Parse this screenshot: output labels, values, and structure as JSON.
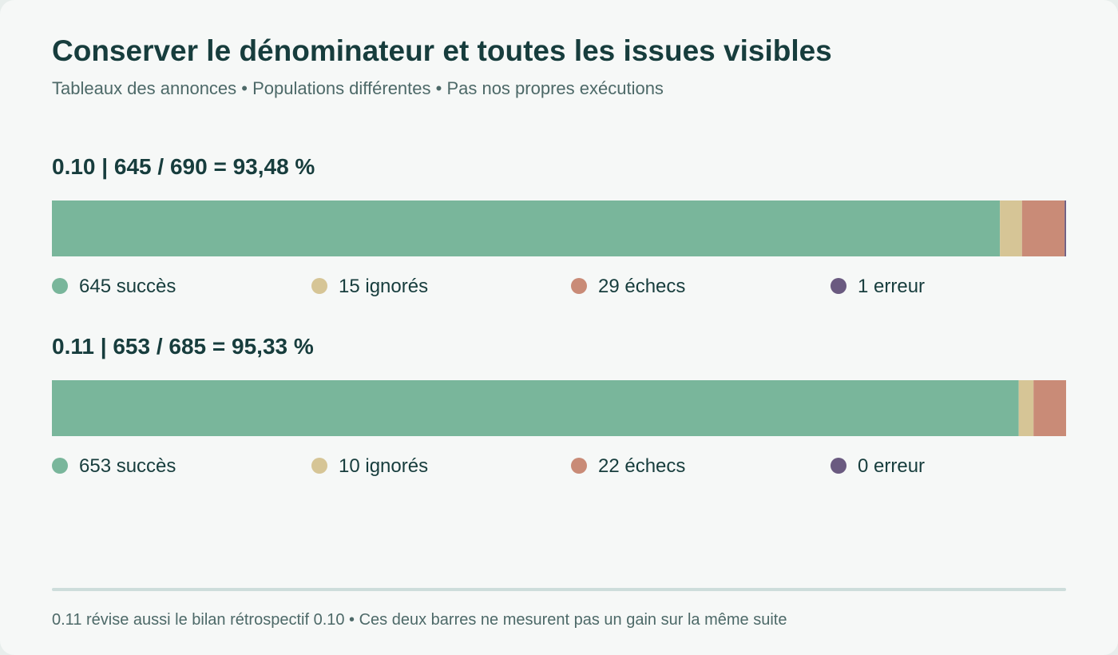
{
  "header": {
    "title": "Conserver le dénominateur et toutes les issues visibles",
    "subtitle": "Tableaux des annonces • Populations différentes • Pas nos propres exécutions"
  },
  "footer": {
    "note": "0.11 révise aussi le bilan rétrospectif 0.10 • Ces deux barres ne mesurent pas un gain sur la même suite"
  },
  "colors": {
    "succes": "#79b69b",
    "ignores": "#d6c596",
    "echecs": "#c98b77",
    "erreur": "#6a5a80"
  },
  "chart_data": {
    "type": "bar",
    "orientation": "horizontal",
    "stacked": true,
    "normalized_to_total": true,
    "bars": [
      {
        "heading": "0.10 | 645 / 690 = 93,48 %",
        "total": 690,
        "segments": [
          {
            "key": "succes",
            "value": 645,
            "label": "645 succès"
          },
          {
            "key": "ignores",
            "value": 15,
            "label": "15 ignorés"
          },
          {
            "key": "echecs",
            "value": 29,
            "label": "29 échecs"
          },
          {
            "key": "erreur",
            "value": 1,
            "label": "1 erreur"
          }
        ]
      },
      {
        "heading": "0.11 | 653 / 685 = 95,33 %",
        "total": 685,
        "segments": [
          {
            "key": "succes",
            "value": 653,
            "label": "653 succès"
          },
          {
            "key": "ignores",
            "value": 10,
            "label": "10 ignorés"
          },
          {
            "key": "echecs",
            "value": 22,
            "label": "22 échecs"
          },
          {
            "key": "erreur",
            "value": 0,
            "label": "0 erreur"
          }
        ]
      }
    ]
  }
}
